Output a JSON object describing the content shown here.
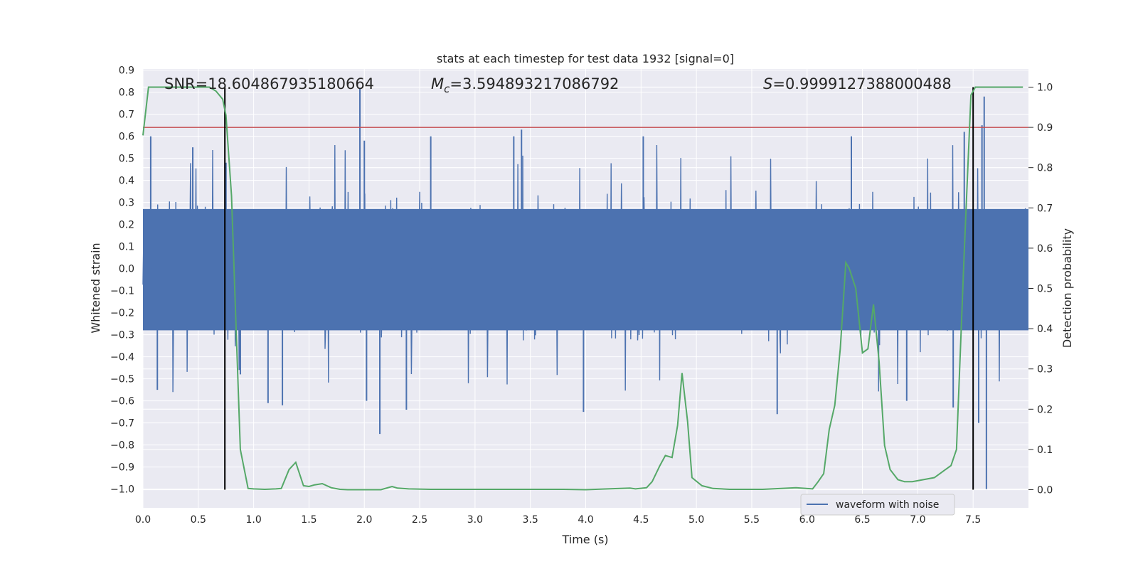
{
  "chart_data": {
    "type": "line",
    "title": "stats at each timestep for test data 1932 [signal=0]",
    "xlabel": "Time (s)",
    "ylabel_left": "Whitened strain",
    "ylabel_right": "Detection probability",
    "xlim": [
      0.0,
      8.0
    ],
    "ylim_left": [
      -1.085,
      0.905
    ],
    "ylim_right": [
      -0.045,
      1.045
    ],
    "x_ticks": [
      "0.0",
      "0.5",
      "1.0",
      "1.5",
      "2.0",
      "2.5",
      "3.0",
      "3.5",
      "4.0",
      "4.5",
      "5.0",
      "5.5",
      "6.0",
      "6.5",
      "7.0",
      "7.5"
    ],
    "y_left_ticks": [
      "0.9",
      "0.8",
      "0.7",
      "0.6",
      "0.5",
      "0.4",
      "0.3",
      "0.2",
      "0.1",
      "0.0",
      "−0.1",
      "−0.2",
      "−0.3",
      "−0.4",
      "−0.5",
      "−0.6",
      "−0.7",
      "−0.8",
      "−0.9",
      "−1.0"
    ],
    "y_right_ticks": [
      "1.0",
      "0.9",
      "0.8",
      "0.7",
      "0.6",
      "0.5",
      "0.4",
      "0.3",
      "0.2",
      "0.1",
      "0.0"
    ],
    "grid": true,
    "legend": {
      "label": "waveform with noise",
      "position": "lower-right"
    },
    "annotations": {
      "snr": "SNR=18.604867935180664",
      "mc_symbol": "M",
      "mc_sub": "c",
      "mc_value": "=3.594893217086792",
      "s_symbol": "S",
      "s_value": "=0.9999127388000488"
    },
    "threshold": {
      "value": 0.9,
      "axis": "right",
      "color": "#c44e52"
    },
    "vertical_lines": [
      0.74,
      7.5
    ],
    "colors": {
      "waveform": "#4c72b0",
      "probability": "#55a868",
      "background": "#eaeaf2",
      "grid": "#ffffff",
      "markers": "#000000"
    },
    "waveform": {
      "description_range": "noisy whitened strain, band approx -0.3 to 0.3 with spikes",
      "band": [
        -0.28,
        0.27
      ],
      "spikes": [
        {
          "t": 0.07,
          "v": 0.6
        },
        {
          "t": 0.13,
          "v": -0.55
        },
        {
          "t": 0.45,
          "v": 0.55
        },
        {
          "t": 0.75,
          "v": 0.48
        },
        {
          "t": 0.88,
          "v": -0.48
        },
        {
          "t": 1.13,
          "v": -0.61
        },
        {
          "t": 1.26,
          "v": -0.62
        },
        {
          "t": 1.96,
          "v": 0.82
        },
        {
          "t": 2.0,
          "v": 0.58
        },
        {
          "t": 2.02,
          "v": -0.6
        },
        {
          "t": 2.14,
          "v": -0.75
        },
        {
          "t": 2.38,
          "v": -0.64
        },
        {
          "t": 2.6,
          "v": 0.6
        },
        {
          "t": 3.35,
          "v": 0.6
        },
        {
          "t": 3.42,
          "v": 0.63
        },
        {
          "t": 3.98,
          "v": -0.65
        },
        {
          "t": 4.52,
          "v": 0.6
        },
        {
          "t": 5.73,
          "v": -0.66
        },
        {
          "t": 6.4,
          "v": 0.6
        },
        {
          "t": 6.9,
          "v": -0.6
        },
        {
          "t": 7.42,
          "v": 0.62
        },
        {
          "t": 7.58,
          "v": 0.65
        },
        {
          "t": 7.6,
          "v": 0.78
        },
        {
          "t": 7.62,
          "v": -1.0
        },
        {
          "t": 7.55,
          "v": -0.7
        },
        {
          "t": 7.32,
          "v": -0.63
        }
      ]
    },
    "probability": {
      "t": [
        0.0,
        0.05,
        0.12,
        0.2,
        0.3,
        0.4,
        0.5,
        0.6,
        0.66,
        0.72,
        0.75,
        0.8,
        0.88,
        0.95,
        1.0,
        1.1,
        1.2,
        1.25,
        1.32,
        1.38,
        1.45,
        1.5,
        1.55,
        1.62,
        1.7,
        1.78,
        1.85,
        2.0,
        2.15,
        2.25,
        2.3,
        2.4,
        2.6,
        3.0,
        3.5,
        3.8,
        4.0,
        4.2,
        4.4,
        4.45,
        4.55,
        4.6,
        4.67,
        4.72,
        4.78,
        4.83,
        4.87,
        4.92,
        4.96,
        5.05,
        5.15,
        5.3,
        5.6,
        5.9,
        6.05,
        6.1,
        6.15,
        6.2,
        6.25,
        6.3,
        6.35,
        6.38,
        6.44,
        6.5,
        6.55,
        6.6,
        6.65,
        6.7,
        6.75,
        6.82,
        6.88,
        6.95,
        7.05,
        7.15,
        7.25,
        7.3,
        7.35,
        7.42,
        7.48,
        7.52,
        7.56,
        7.6,
        7.65,
        7.7,
        7.8,
        7.95
      ],
      "p": [
        0.88,
        1.0,
        1.0,
        1.0,
        1.0,
        1.0,
        1.0,
        1.0,
        0.99,
        0.97,
        0.93,
        0.73,
        0.1,
        0.003,
        0.002,
        0.001,
        0.002,
        0.003,
        0.05,
        0.068,
        0.01,
        0.008,
        0.012,
        0.015,
        0.005,
        0.001,
        0.0,
        0.0,
        0.0,
        0.008,
        0.004,
        0.002,
        0.001,
        0.001,
        0.001,
        0.001,
        0.0,
        0.002,
        0.004,
        0.002,
        0.005,
        0.02,
        0.06,
        0.085,
        0.08,
        0.16,
        0.29,
        0.17,
        0.03,
        0.01,
        0.003,
        0.001,
        0.001,
        0.005,
        0.002,
        0.02,
        0.04,
        0.15,
        0.21,
        0.35,
        0.564,
        0.55,
        0.5,
        0.34,
        0.35,
        0.46,
        0.32,
        0.11,
        0.05,
        0.025,
        0.02,
        0.02,
        0.025,
        0.03,
        0.05,
        0.06,
        0.1,
        0.59,
        0.98,
        1.0,
        1.0,
        1.0,
        1.0,
        1.0,
        1.0,
        1.0
      ]
    }
  }
}
